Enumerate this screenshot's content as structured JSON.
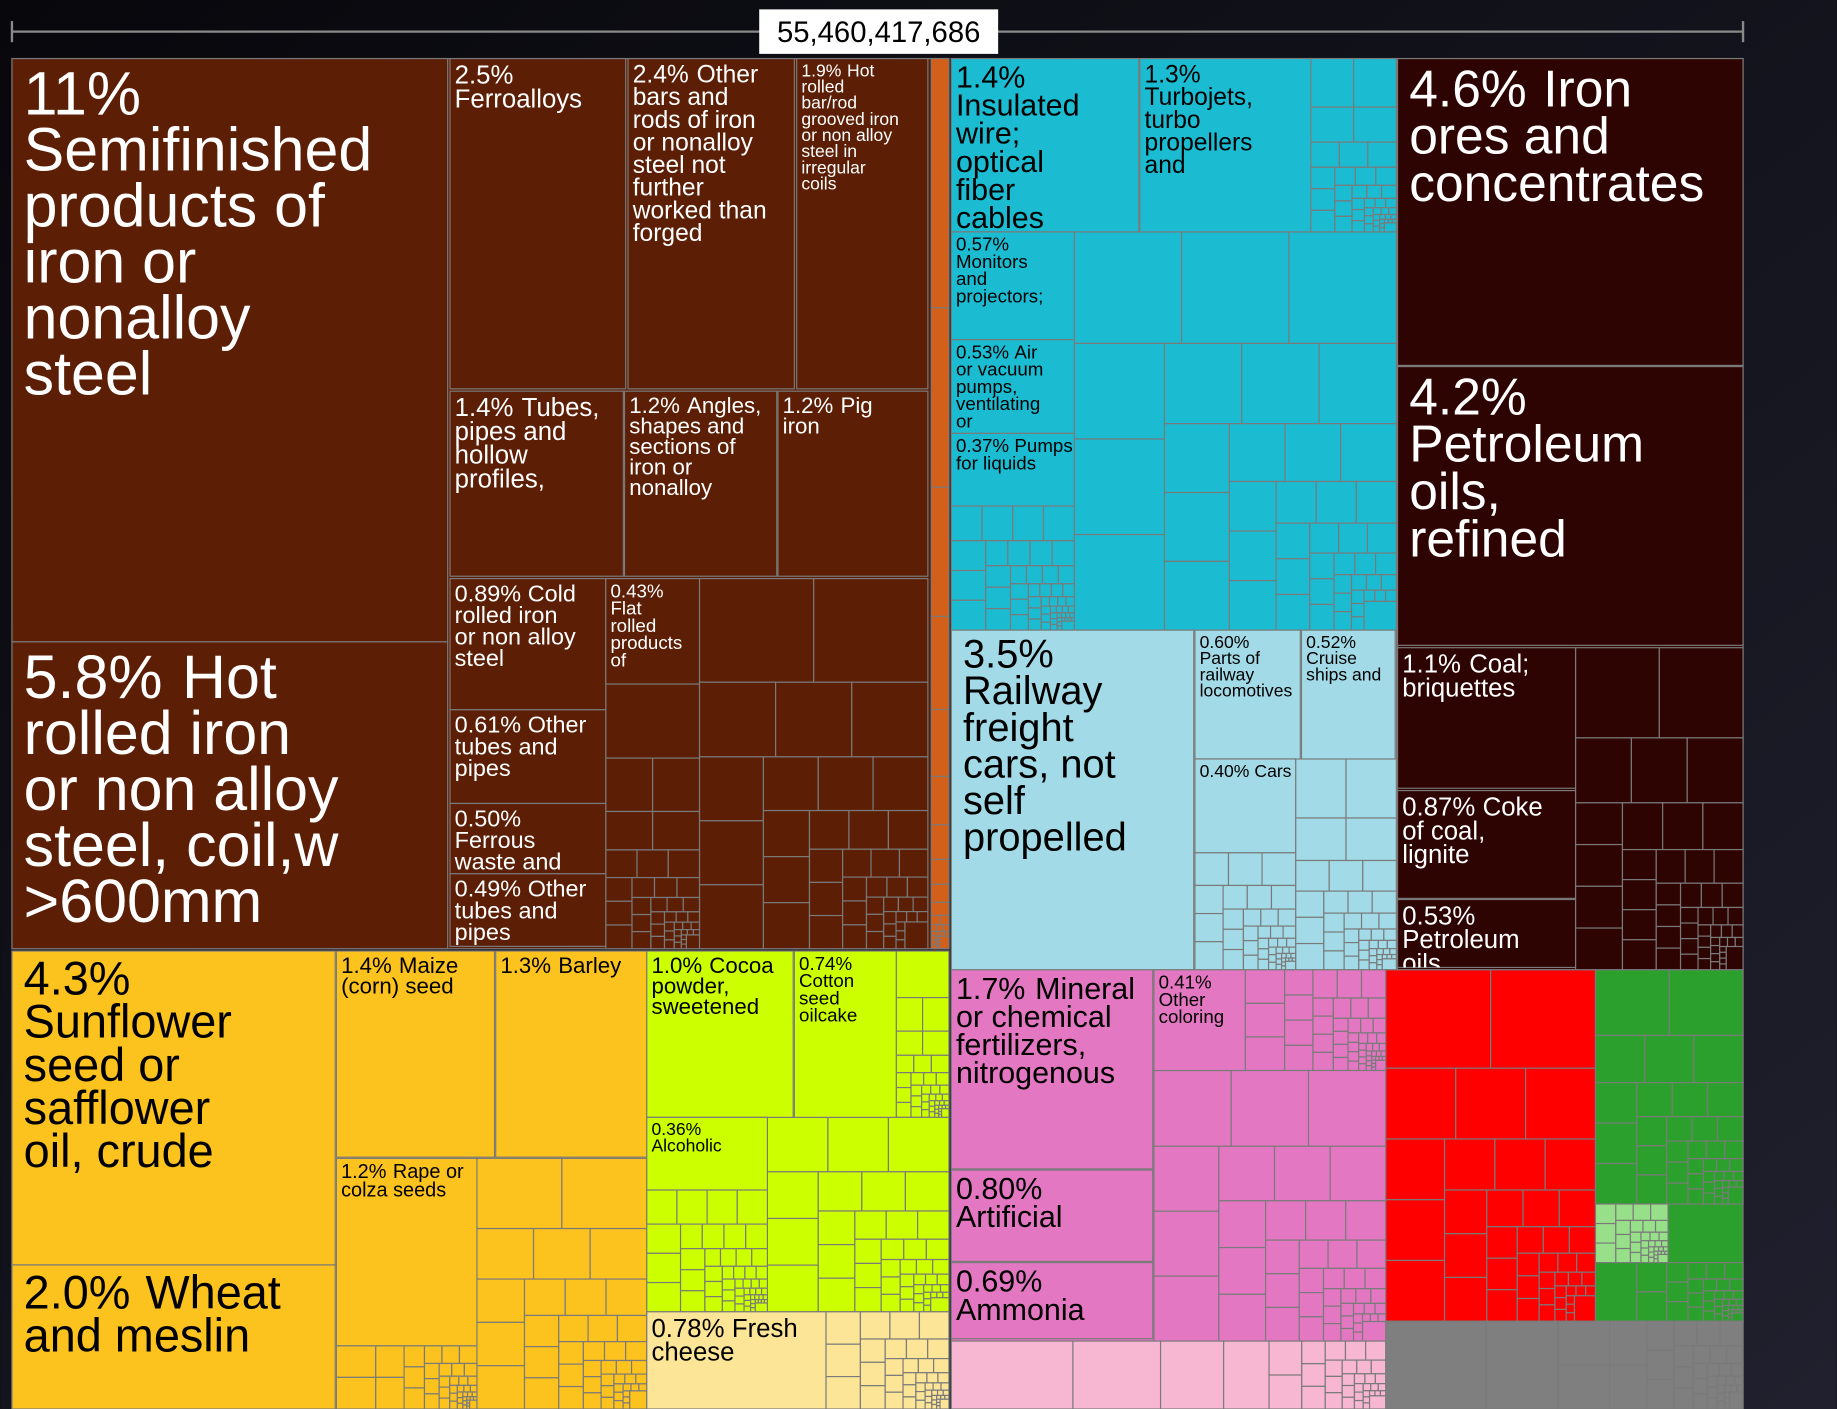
{
  "chart_data": {
    "type": "treemap",
    "title": "55,460,417,686",
    "categories": [
      "Semifinished products of iron or nonalloy steel",
      "Hot rolled iron or non alloy steel, coil,w >600mm",
      "Ferroalloys",
      "Other bars and rods of iron or nonalloy steel not further worked than forged",
      "Hot rolled bar/rod grooved iron or non alloy steel in irregular coils",
      "Tubes, pipes and hollow profiles,",
      "Angles, shapes and sections of iron or nonalloy",
      "Pig iron",
      "Cold rolled iron or non alloy steel",
      "Flat rolled products of",
      "Other tubes and pipes",
      "Ferrous waste and",
      "Other tubes and pipes",
      "Insulated wire; optical fiber cables",
      "Turbojets, turbo propellers and",
      "Monitors and projectors;",
      "Air or vacuum pumps, ventilating or",
      "Pumps for liquids",
      "Railway freight cars, not self propelled",
      "Parts of railway locomotives",
      "Cruise ships and",
      "Cars",
      "Iron ores and concentrates",
      "Petroleum oils, refined",
      "Coal; briquettes",
      "Coke of coal, lignite",
      "Petroleum oils",
      "Sunflower seed or safflower oil, crude",
      "Wheat and meslin",
      "Maize (corn) seed",
      "Barley",
      "Rape or colza seeds",
      "Cocoa powder, sweetened",
      "Cotton seed oilcake",
      "Alcoholic",
      "Fresh cheese",
      "Mineral or chemical fertilizers, nitrogenous",
      "Other coloring",
      "Artificial",
      "Ammonia"
    ],
    "values": [
      11,
      5.8,
      2.5,
      2.4,
      1.9,
      1.4,
      1.2,
      1.2,
      0.89,
      0.43,
      0.61,
      0.5,
      0.49,
      1.4,
      1.3,
      0.57,
      0.53,
      0.37,
      3.5,
      0.6,
      0.52,
      0.4,
      4.6,
      4.2,
      1.1,
      0.87,
      0.53,
      4.3,
      2.0,
      1.4,
      1.3,
      1.2,
      1.0,
      0.74,
      0.36,
      0.78,
      1.7,
      0.41,
      0.8,
      0.69
    ],
    "value_labels": [
      "11%",
      "5.8%",
      "2.5%",
      "2.4%",
      "1.9%",
      "1.4%",
      "1.2%",
      "1.2%",
      "0.89%",
      "0.43%",
      "0.61%",
      "0.50%",
      "0.49%",
      "1.4%",
      "1.3%",
      "0.57%",
      "0.53%",
      "0.37%",
      "3.5%",
      "0.60%",
      "0.52%",
      "0.40%",
      "4.6%",
      "4.2%",
      "1.1%",
      "0.87%",
      "0.53%",
      "4.3%",
      "2.0%",
      "1.4%",
      "1.3%",
      "1.2%",
      "1.0%",
      "0.74%",
      "0.36%",
      "0.78%",
      "1.7%",
      "0.41%",
      "0.80%",
      "0.69%"
    ],
    "colors": [
      "#5c1f06",
      "#5c1f06",
      "#5c1f06",
      "#5c1f06",
      "#5c1f06",
      "#5c1f06",
      "#5c1f06",
      "#5c1f06",
      "#5c1f06",
      "#5c1f06",
      "#5c1f06",
      "#5c1f06",
      "#5c1f06",
      "#1bbcd2",
      "#1bbcd2",
      "#1bbcd2",
      "#1bbcd2",
      "#1bbcd2",
      "#a2dbe7",
      "#a2dbe7",
      "#a2dbe7",
      "#a2dbe7",
      "#2e0402",
      "#2e0402",
      "#2e0402",
      "#2e0402",
      "#2e0402",
      "#fcc21d",
      "#fcc21d",
      "#fcc21d",
      "#fcc21d",
      "#fcc21d",
      "#ccff00",
      "#ccff00",
      "#ccff00",
      "#fde597",
      "#e377c2",
      "#e377c2",
      "#e377c2",
      "#e377c2"
    ]
  }
}
